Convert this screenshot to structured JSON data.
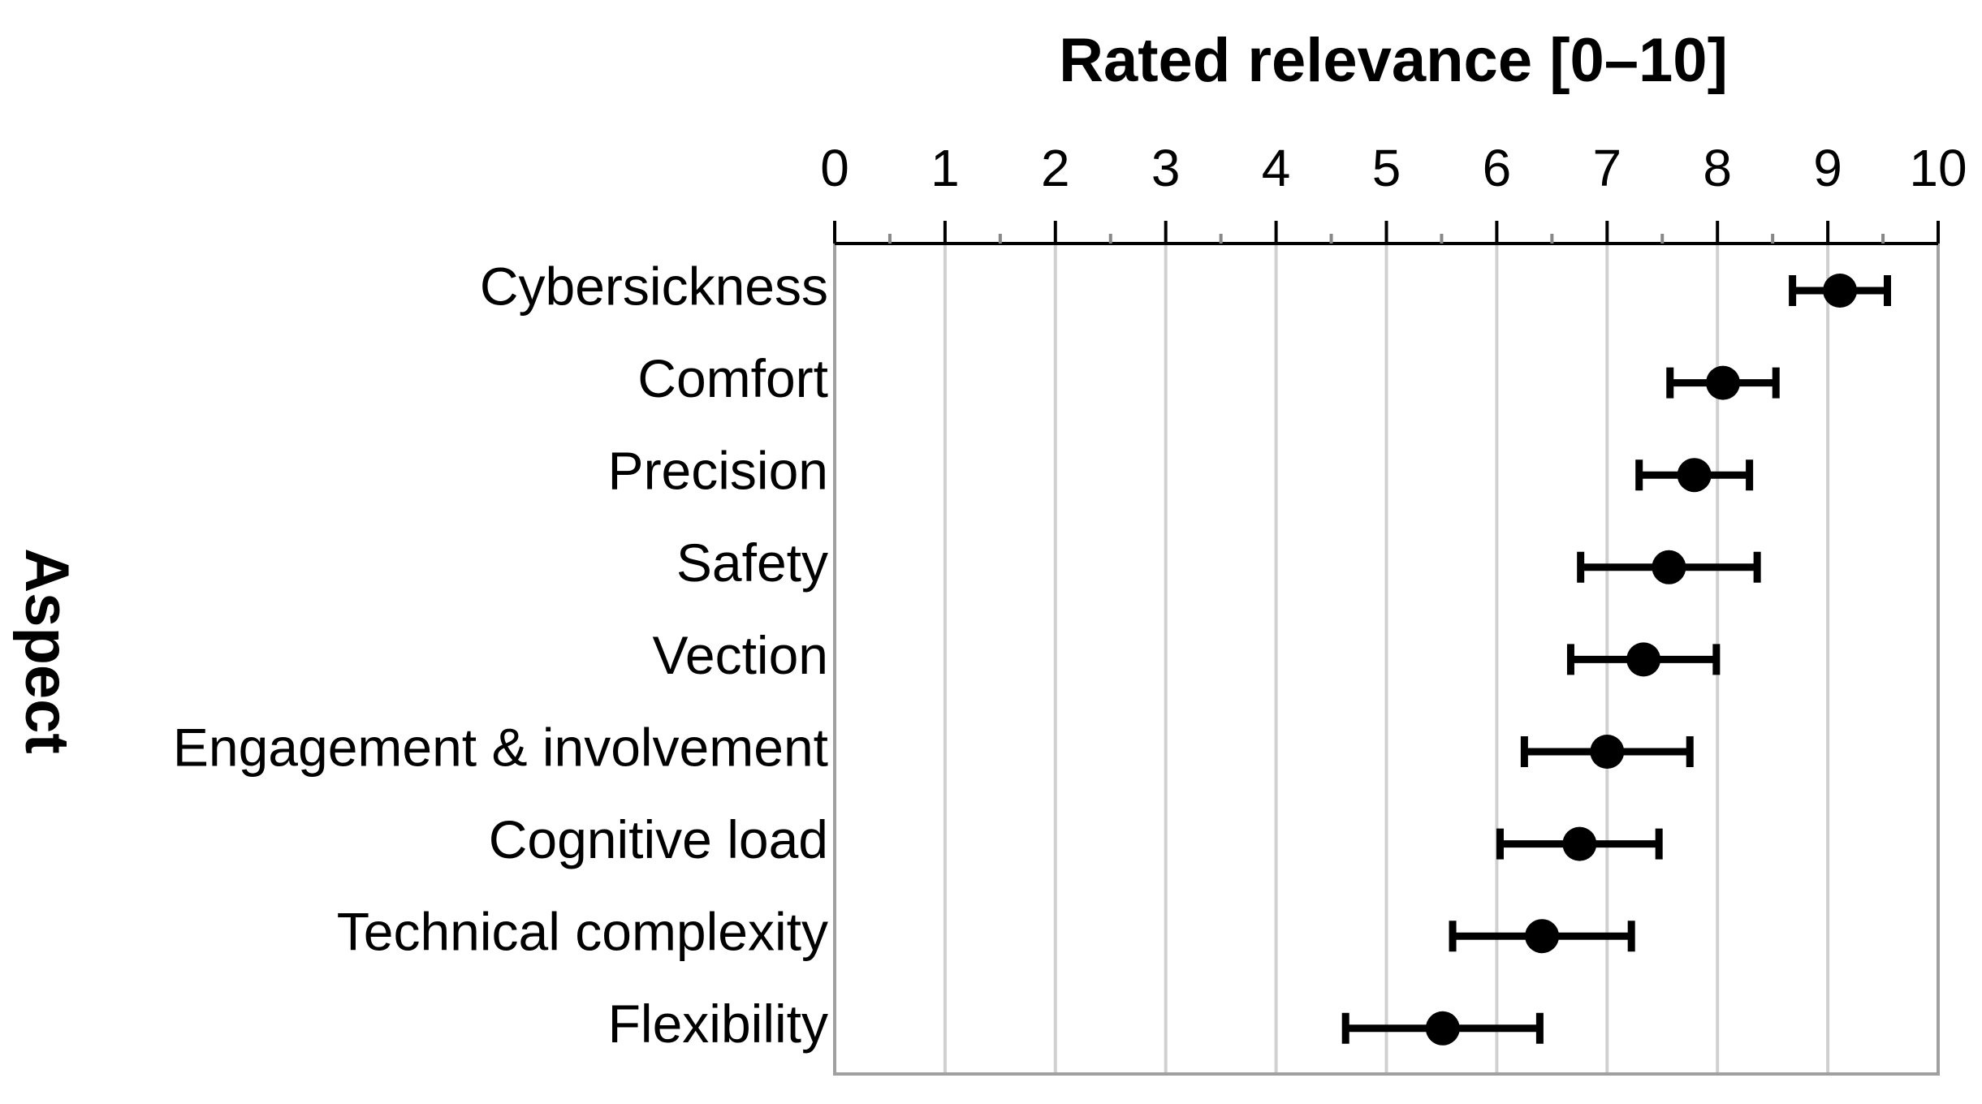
{
  "chart_data": {
    "type": "dot_errorbar",
    "orientation": "horizontal",
    "title": "Rated relevance [0–10]",
    "y_label": "Aspect",
    "categories": [
      "Cybersickness",
      "Comfort",
      "Precision",
      "Safety",
      "Vection",
      "Engagement & involvement",
      "Cognitive load",
      "Technical complexity",
      "Flexibility"
    ],
    "values": [
      9.11,
      8.05,
      7.79,
      7.56,
      7.33,
      7.0,
      6.75,
      6.41,
      5.51
    ],
    "errors": [
      0.43,
      0.48,
      0.5,
      0.8,
      0.66,
      0.75,
      0.72,
      0.81,
      0.88
    ],
    "color": "#000000",
    "xlim": [
      0,
      10
    ],
    "xticks": [
      0,
      1,
      2,
      3,
      4,
      5,
      6,
      7,
      8,
      9,
      10
    ],
    "minor_xticks": [
      0.5,
      1.5,
      2.5,
      3.5,
      4.5,
      5.5,
      6.5,
      7.5,
      8.5,
      9.5
    ],
    "grid": true
  }
}
